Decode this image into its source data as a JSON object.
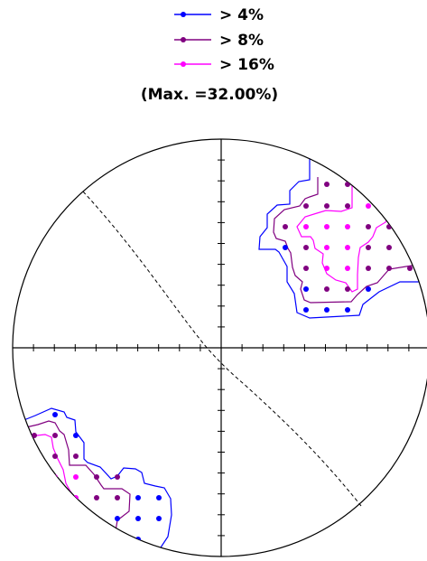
{
  "legend": {
    "items": [
      {
        "label": "> 4%",
        "color": "#0000ff"
      },
      {
        "label": "> 8%",
        "color": "#800080"
      },
      {
        "label": "> 16%",
        "color": "#ff00ff"
      }
    ],
    "max_text": "(Max. =32.00%)"
  },
  "colors": {
    "outline": "#000000",
    "dashed_plane": "#000000",
    "contour_low": "#0000ff",
    "contour_mid": "#800080",
    "contour_high": "#ff00ff"
  },
  "plot": {
    "type": "stereonet density contour plot",
    "contour_levels_percent": [
      4,
      8,
      16
    ],
    "max_percent": 32.0
  }
}
